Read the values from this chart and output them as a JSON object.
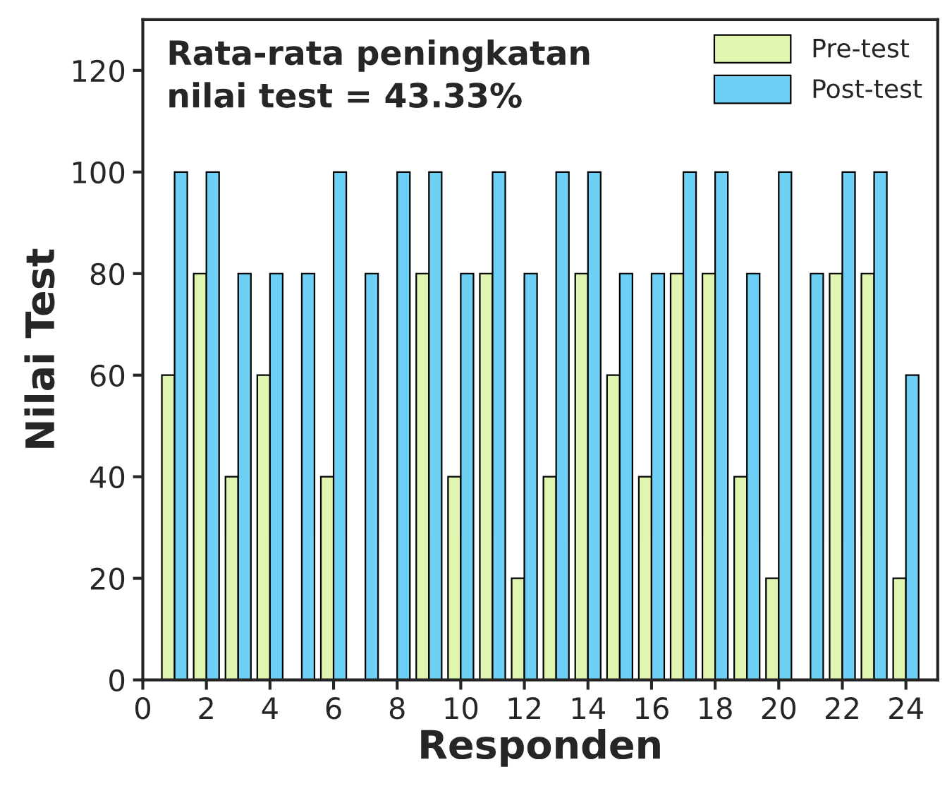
{
  "chart_data": {
    "type": "bar",
    "xlabel": "Responden",
    "ylabel": "Nilai Test",
    "annotations": [
      "Rata-rata peningkatan\nnilai test = 43.33%"
    ],
    "x": [
      1,
      2,
      3,
      4,
      5,
      6,
      7,
      8,
      9,
      10,
      11,
      12,
      13,
      14,
      15,
      16,
      17,
      18,
      19,
      20,
      21,
      22,
      23,
      24
    ],
    "series": [
      {
        "name": "Pre-test",
        "color": "#dff5b0",
        "values": [
          60,
          80,
          40,
          60,
          0,
          40,
          0,
          0,
          80,
          40,
          80,
          20,
          40,
          80,
          60,
          40,
          80,
          80,
          40,
          20,
          0,
          80,
          80,
          20
        ]
      },
      {
        "name": "Post-test",
        "color": "#6fd0f5",
        "values": [
          100,
          100,
          80,
          80,
          80,
          100,
          80,
          100,
          100,
          80,
          100,
          80,
          100,
          100,
          80,
          80,
          100,
          100,
          80,
          100,
          80,
          100,
          100,
          60
        ]
      }
    ],
    "xlim": [
      0,
      25
    ],
    "xticks": [
      0,
      2,
      4,
      6,
      8,
      10,
      12,
      14,
      16,
      18,
      20,
      22,
      24
    ],
    "ylim": [
      0,
      130
    ],
    "yticks": [
      0,
      20,
      40,
      60,
      80,
      100,
      120
    ],
    "grid": false,
    "legend": "top right"
  }
}
